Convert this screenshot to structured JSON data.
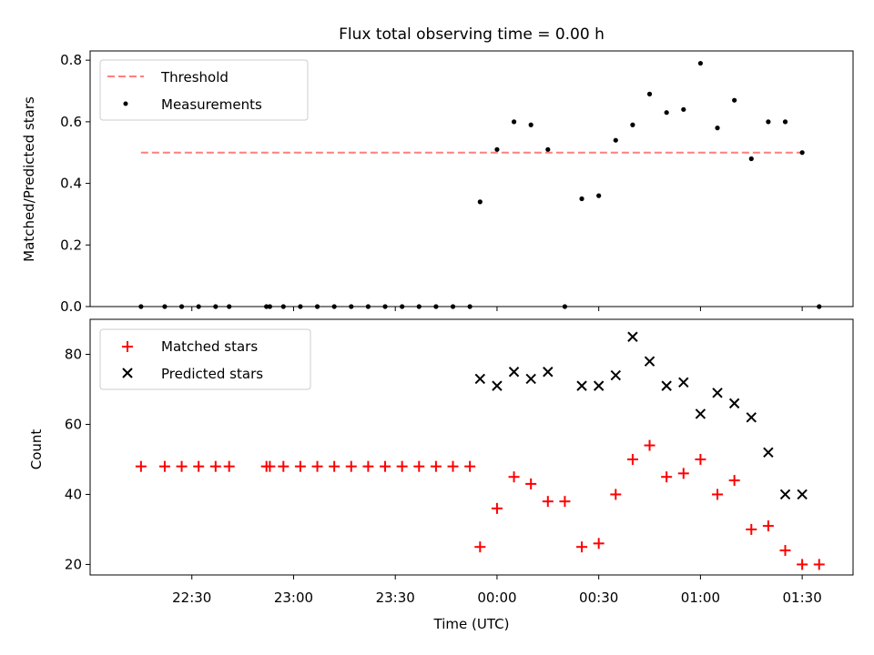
{
  "title": "Flux total observing time = 0.00 h",
  "chart_data": [
    {
      "type": "scatter",
      "panel": "top",
      "ylabel": "Matched/Predicted stars",
      "ylim": [
        0.0,
        0.83
      ],
      "yticks": [
        "0.0",
        "0.2",
        "0.4",
        "0.6",
        "0.8"
      ],
      "ytick_values": [
        0.0,
        0.2,
        0.4,
        0.6,
        0.8
      ],
      "grid": false,
      "legend_position": "top-left",
      "threshold": {
        "name": "Threshold",
        "value": 0.5,
        "x_start": "22:15",
        "x_end": "01:30",
        "color": "#ff7f7f"
      },
      "series": [
        {
          "name": "Measurements",
          "marker": "dot",
          "color": "#000000",
          "x": [
            "22:15",
            "22:22",
            "22:27",
            "22:32",
            "22:37",
            "22:41",
            "22:52",
            "22:53",
            "22:57",
            "23:02",
            "23:07",
            "23:12",
            "23:17",
            "23:22",
            "23:27",
            "23:32",
            "23:37",
            "23:42",
            "23:47",
            "23:52",
            "23:55",
            "00:00",
            "00:05",
            "00:10",
            "00:15",
            "00:20",
            "00:25",
            "00:30",
            "00:35",
            "00:40",
            "00:45",
            "00:50",
            "00:55",
            "01:00",
            "01:05",
            "01:10",
            "01:15",
            "01:20",
            "01:25",
            "01:30",
            "01:35"
          ],
          "y": [
            0,
            0,
            0,
            0,
            0,
            0,
            0,
            0,
            0,
            0,
            0,
            0,
            0,
            0,
            0,
            0,
            0,
            0,
            0,
            0,
            0.34,
            0.51,
            0.6,
            0.59,
            0.51,
            0,
            0.35,
            0.36,
            0.54,
            0.59,
            0.69,
            0.63,
            0.64,
            0.79,
            0.58,
            0.67,
            0.48,
            0.6,
            0.6,
            0.5,
            0
          ]
        }
      ]
    },
    {
      "type": "scatter",
      "panel": "bottom",
      "xlabel": "Time (UTC)",
      "ylabel": "Count",
      "ylim": [
        17,
        90
      ],
      "yticks": [
        "20",
        "40",
        "60",
        "80"
      ],
      "ytick_values": [
        20,
        40,
        60,
        80
      ],
      "xticks": [
        "22:30",
        "23:00",
        "23:30",
        "00:00",
        "00:30",
        "01:00",
        "01:30"
      ],
      "xlim": [
        "22:00",
        "01:45"
      ],
      "grid": false,
      "legend_position": "top-left",
      "series": [
        {
          "name": "Matched stars",
          "marker": "plus",
          "color": "#ff0000",
          "x": [
            "22:15",
            "22:22",
            "22:27",
            "22:32",
            "22:37",
            "22:41",
            "22:52",
            "22:53",
            "22:57",
            "23:02",
            "23:07",
            "23:12",
            "23:17",
            "23:22",
            "23:27",
            "23:32",
            "23:37",
            "23:42",
            "23:47",
            "23:52",
            "23:55",
            "00:00",
            "00:05",
            "00:10",
            "00:15",
            "00:20",
            "00:25",
            "00:30",
            "00:35",
            "00:40",
            "00:45",
            "00:50",
            "00:55",
            "01:00",
            "01:05",
            "01:10",
            "01:15",
            "01:20",
            "01:25",
            "01:30",
            "01:35"
          ],
          "y": [
            48,
            48,
            48,
            48,
            48,
            48,
            48,
            48,
            48,
            48,
            48,
            48,
            48,
            48,
            48,
            48,
            48,
            48,
            48,
            48,
            25,
            36,
            45,
            43,
            38,
            38,
            25,
            26,
            40,
            50,
            54,
            45,
            46,
            50,
            40,
            44,
            30,
            31,
            24,
            20,
            20
          ]
        },
        {
          "name": "Predicted stars",
          "marker": "x",
          "color": "#000000",
          "x": [
            "23:55",
            "00:00",
            "00:05",
            "00:10",
            "00:15",
            "00:25",
            "00:30",
            "00:35",
            "00:40",
            "00:45",
            "00:50",
            "00:55",
            "01:00",
            "01:05",
            "01:10",
            "01:15",
            "01:20",
            "01:25",
            "01:30"
          ],
          "y": [
            73,
            71,
            75,
            73,
            75,
            71,
            71,
            74,
            85,
            78,
            71,
            72,
            63,
            69,
            66,
            62,
            52,
            40,
            40
          ]
        }
      ]
    }
  ]
}
